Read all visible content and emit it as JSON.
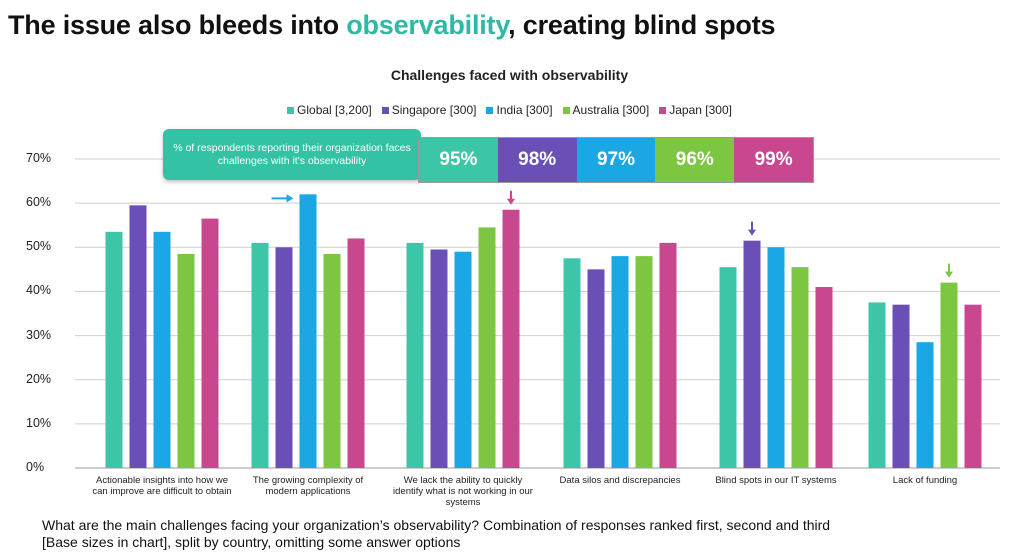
{
  "headline": {
    "before": "The issue also bleeds into ",
    "accent": "observability",
    "after": ", creating blind spots"
  },
  "colors": {
    "accent": "#2fb8a4",
    "global": "#3cc6a7",
    "singapore": "#6a4fb7",
    "india": "#1aa7e3",
    "australia": "#7cc642",
    "japan": "#c8478f"
  },
  "callout": {
    "text": "% of respondents reporting their organization faces challenges with it's observability"
  },
  "overall_pct": [
    {
      "country": "global",
      "value": "95%"
    },
    {
      "country": "singapore",
      "value": "98%"
    },
    {
      "country": "india",
      "value": "97%"
    },
    {
      "country": "australia",
      "value": "96%"
    },
    {
      "country": "japan",
      "value": "99%"
    }
  ],
  "chart_data": {
    "type": "bar",
    "title": "Challenges faced with observability",
    "ylim": [
      0,
      70
    ],
    "yticks": [
      "0%",
      "10%",
      "20%",
      "30%",
      "40%",
      "50%",
      "60%",
      "70%"
    ],
    "grid": true,
    "legend_position": "top",
    "categories": [
      [
        "Actionable insights into how we",
        "can improve are difficult to obtain"
      ],
      [
        "The growing complexity of",
        "modern applications"
      ],
      [
        "We lack the ability to quickly",
        "identify what is not working in our",
        "systems"
      ],
      [
        "Data silos and discrepancies"
      ],
      [
        "Blind spots in our IT systems"
      ],
      [
        "Lack of funding"
      ]
    ],
    "series": [
      {
        "name": "Global [3,200]",
        "key": "global",
        "values": [
          53.5,
          51,
          51,
          47.5,
          45.5,
          37.5
        ]
      },
      {
        "name": "Singapore [300]",
        "key": "singapore",
        "values": [
          59.5,
          50,
          49.5,
          45,
          51.5,
          37
        ]
      },
      {
        "name": "India [300]",
        "key": "india",
        "values": [
          53.5,
          62,
          49,
          48,
          50,
          28.5
        ]
      },
      {
        "name": "Australia [300]",
        "key": "australia",
        "values": [
          48.5,
          48.5,
          54.5,
          48,
          45.5,
          42
        ]
      },
      {
        "name": "Japan [300]",
        "key": "japan",
        "values": [
          56.5,
          52,
          58.5,
          51,
          41,
          37
        ]
      }
    ],
    "annotations": [
      {
        "type": "arrow-right",
        "category": 1,
        "series": "india",
        "color": "#1aa7e3"
      },
      {
        "type": "arrow-down",
        "category": 2,
        "series": "japan",
        "color": "#c8478f"
      },
      {
        "type": "arrow-down",
        "category": 4,
        "series": "singapore",
        "color": "#6a4fb7"
      },
      {
        "type": "arrow-down",
        "category": 5,
        "series": "australia",
        "color": "#7cc642"
      }
    ]
  },
  "footer": {
    "line1": "What are the main challenges facing your organization’s observability? Combination of responses ranked first, second and third",
    "line2": "[Base sizes in chart], split by country, omitting some answer options"
  }
}
